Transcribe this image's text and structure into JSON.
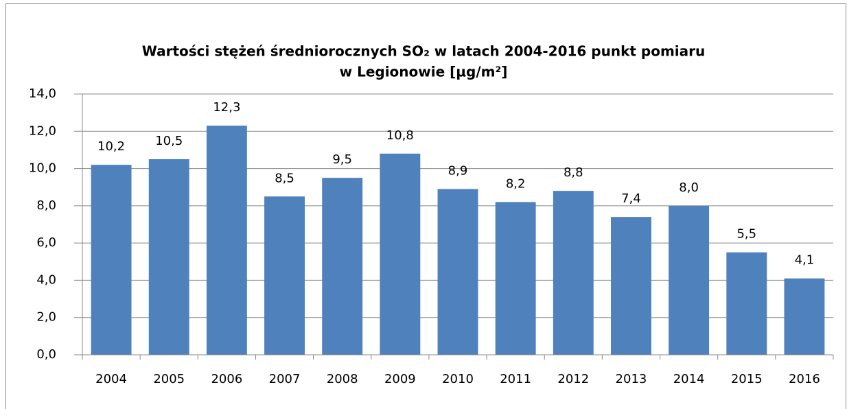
{
  "chart_data": {
    "type": "bar",
    "title": [
      "Wartości stężeń średniorocznych SO₂ w latach 2004-2016 punkt pomiaru",
      "w Legionowie [µg/m²]"
    ],
    "categories": [
      "2004",
      "2005",
      "2006",
      "2007",
      "2008",
      "2009",
      "2010",
      "2011",
      "2012",
      "2013",
      "2014",
      "2015",
      "2016"
    ],
    "values": [
      10.2,
      10.5,
      12.3,
      8.5,
      9.5,
      10.8,
      8.9,
      8.2,
      8.8,
      7.4,
      8.0,
      5.5,
      4.1
    ],
    "value_labels": [
      "10,2",
      "10,5",
      "12,3",
      "8,5",
      "9,5",
      "10,8",
      "8,9",
      "8,2",
      "8,8",
      "7,4",
      "8,0",
      "5,5",
      "4,1"
    ],
    "color": "#4f81bd",
    "ylim": [
      0,
      14
    ],
    "yticks": [
      {
        "value": 0,
        "label": "0,0"
      },
      {
        "value": 2,
        "label": "2,0"
      },
      {
        "value": 4,
        "label": "4,0"
      },
      {
        "value": 6,
        "label": "6,0"
      },
      {
        "value": 8,
        "label": "8,0"
      },
      {
        "value": 10,
        "label": "10,0"
      },
      {
        "value": 12,
        "label": "12,0"
      },
      {
        "value": 14,
        "label": "14,0"
      }
    ],
    "grid": true
  }
}
